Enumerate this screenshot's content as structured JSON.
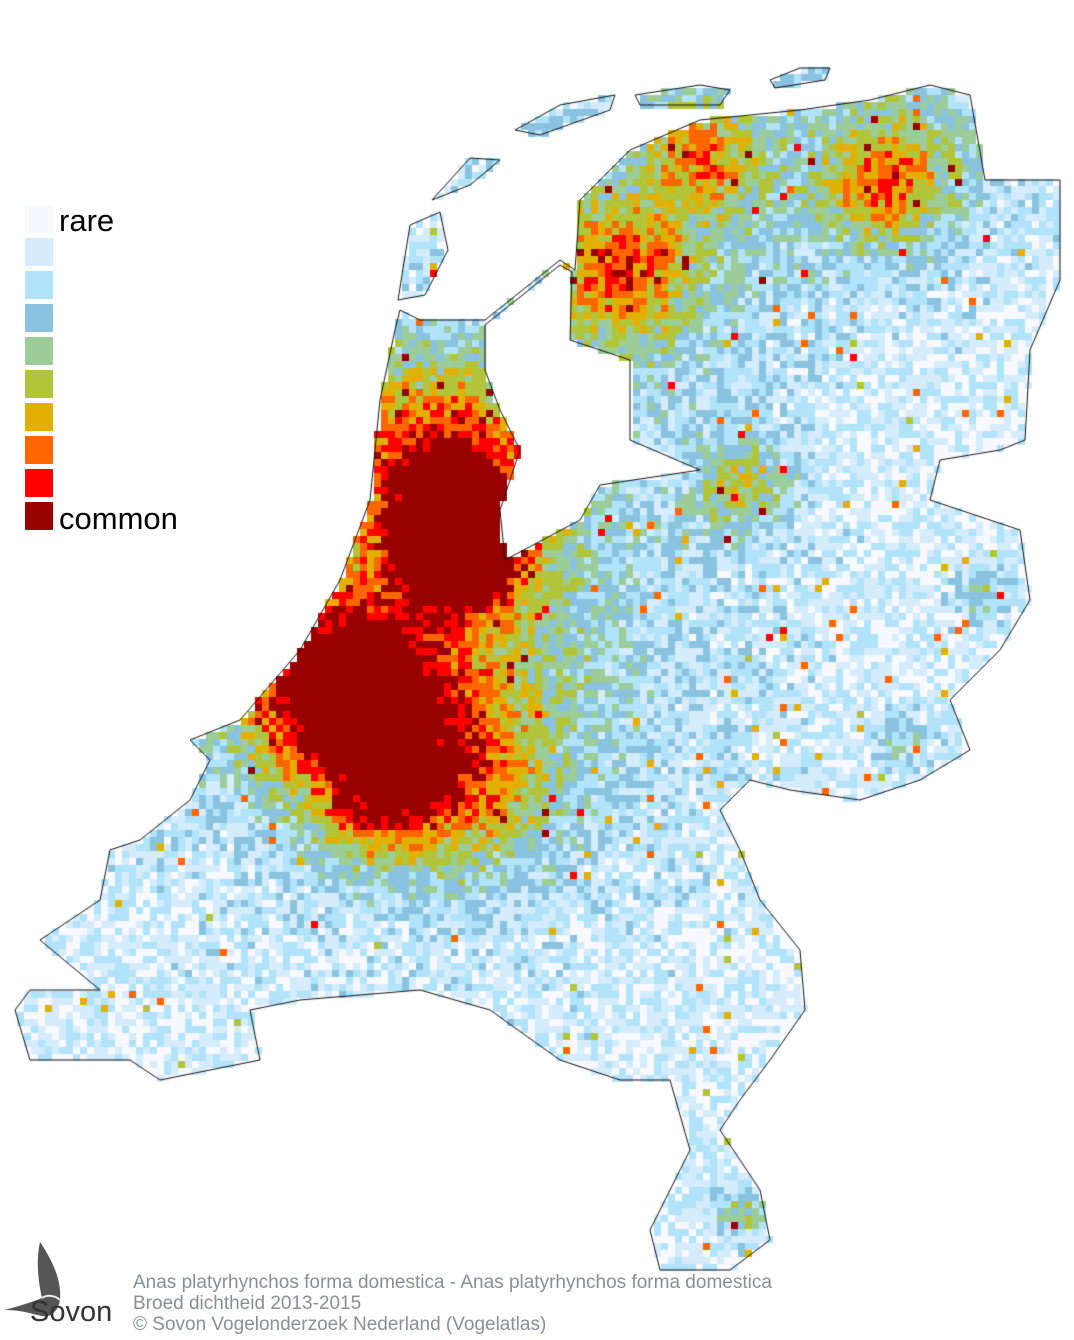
{
  "legend": {
    "top_label": "rare",
    "bottom_label": "common",
    "colors": [
      "#f8f8ff",
      "#d4ecfb",
      "#b1e3fa",
      "#8ac3e0",
      "#9ccc98",
      "#b2c43a",
      "#e2b005",
      "#ff6600",
      "#ff0000",
      "#990000"
    ]
  },
  "footer": {
    "line1": "Anas platyrhynchos forma domestica - Anas platyrhynchos forma domestica",
    "line2": "Broed dichtheid 2013-2015",
    "line3": "© Sovon Vogelonderzoek Nederland (Vogelatlas)"
  },
  "logo": {
    "text": "Sovon"
  }
}
